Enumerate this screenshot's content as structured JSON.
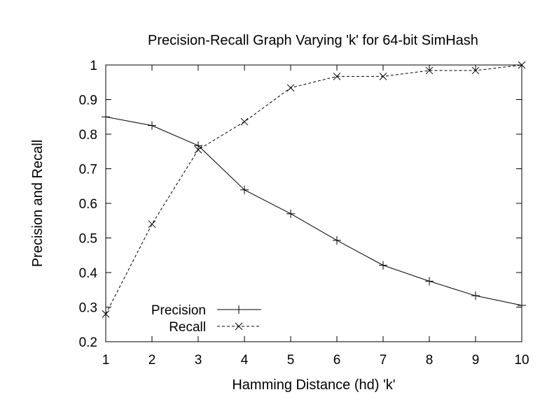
{
  "chart_data": {
    "type": "line",
    "title": "Precision-Recall Graph Varying 'k' for 64-bit SimHash",
    "xlabel": "Hamming Distance (hd) 'k'",
    "ylabel": "Precision and Recall",
    "x": [
      1,
      2,
      3,
      4,
      5,
      6,
      7,
      8,
      9,
      10
    ],
    "xlim": [
      1,
      10
    ],
    "ylim": [
      0.2,
      1
    ],
    "xticks": [
      "1",
      "2",
      "3",
      "4",
      "5",
      "6",
      "7",
      "8",
      "9",
      "10"
    ],
    "yticks": [
      "0.2",
      "0.3",
      "0.4",
      "0.5",
      "0.6",
      "0.7",
      "0.8",
      "0.9",
      "1"
    ],
    "legend_position": "bottom-left",
    "grid": false,
    "series": [
      {
        "name": "Precision",
        "marker": "plus",
        "line": "solid",
        "color": "#000000",
        "values": [
          0.85,
          0.825,
          0.767,
          0.639,
          0.57,
          0.493,
          0.421,
          0.375,
          0.333,
          0.305
        ]
      },
      {
        "name": "Recall",
        "marker": "cross",
        "line": "dashed",
        "color": "#000000",
        "values": [
          0.28,
          0.54,
          0.755,
          0.836,
          0.934,
          0.967,
          0.967,
          0.984,
          0.984,
          1.0
        ]
      }
    ]
  }
}
